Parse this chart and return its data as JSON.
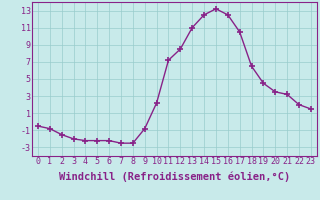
{
  "x": [
    0,
    1,
    2,
    3,
    4,
    5,
    6,
    7,
    8,
    9,
    10,
    11,
    12,
    13,
    14,
    15,
    16,
    17,
    18,
    19,
    20,
    21,
    22,
    23
  ],
  "y": [
    -0.5,
    -0.8,
    -1.5,
    -2.0,
    -2.2,
    -2.2,
    -2.2,
    -2.5,
    -2.5,
    -0.8,
    2.2,
    7.2,
    8.5,
    11.0,
    12.5,
    13.2,
    12.5,
    10.5,
    6.5,
    4.5,
    3.5,
    3.2,
    2.0,
    1.5
  ],
  "line_color": "#882288",
  "marker": "+",
  "marker_size": 4,
  "marker_lw": 1.2,
  "xlabel": "Windchill (Refroidissement éolien,°C)",
  "xlim": [
    -0.5,
    23.5
  ],
  "ylim": [
    -4,
    14
  ],
  "yticks": [
    -3,
    -1,
    1,
    3,
    5,
    7,
    9,
    11,
    13
  ],
  "xticks": [
    0,
    1,
    2,
    3,
    4,
    5,
    6,
    7,
    8,
    9,
    10,
    11,
    12,
    13,
    14,
    15,
    16,
    17,
    18,
    19,
    20,
    21,
    22,
    23
  ],
  "grid_color": "#99cccc",
  "bg_color": "#c8eaea",
  "fig_bg_color": "#c8eaea",
  "xlabel_fontsize": 7.5,
  "tick_fontsize": 6.0,
  "line_width": 1.0
}
